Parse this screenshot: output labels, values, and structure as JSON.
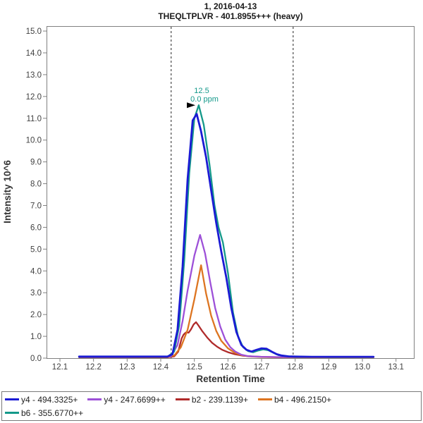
{
  "header": {
    "line1": "1, 2016-04-13",
    "line2": "THEQLTPLVR - 401.8955+++ (heavy)"
  },
  "colors": {
    "frame": "#808080",
    "tick_text": "#404040",
    "axis_title_text": "#333333",
    "boundary_line": "#222222",
    "annotation_text": "#14998a"
  },
  "chart_data": {
    "type": "line",
    "title": "1, 2016-04-13",
    "subtitle": "THEQLTPLVR - 401.8955+++ (heavy)",
    "xlabel": "Retention Time",
    "ylabel": "Intensity 10^6",
    "xlim": [
      12.06,
      13.16
    ],
    "ylim": [
      0,
      15.2
    ],
    "grid": false,
    "legend_position": "bottom",
    "x_ticks": [
      "12.1",
      "12.2",
      "12.3",
      "12.4",
      "12.5",
      "12.6",
      "12.7",
      "12.8",
      "12.9",
      "13.0",
      "13.1"
    ],
    "x_tick_values": [
      12.1,
      12.2,
      12.3,
      12.4,
      12.5,
      12.6,
      12.7,
      12.8,
      12.9,
      13.0,
      13.1
    ],
    "y_ticks": [
      "0.0",
      "1.0",
      "2.0",
      "3.0",
      "4.0",
      "5.0",
      "6.0",
      "7.0",
      "8.0",
      "9.0",
      "10.0",
      "11.0",
      "12.0",
      "13.0",
      "14.0",
      "15.0"
    ],
    "y_tick_values": [
      0,
      1,
      2,
      3,
      4,
      5,
      6,
      7,
      8,
      9,
      10,
      11,
      12,
      13,
      14,
      15
    ],
    "boundaries": [
      12.431,
      12.794
    ],
    "annotation": {
      "label": "12.5",
      "sublabel": "0.0 ppm",
      "x": 12.507,
      "y": 11.6
    },
    "series": [
      {
        "name": "b2 - 239.1139+",
        "color": "#b02b2b",
        "width": 2.3,
        "points": [
          [
            12.157,
            0.04
          ],
          [
            12.3,
            0.04
          ],
          [
            12.42,
            0.04
          ],
          [
            12.44,
            0.08
          ],
          [
            12.452,
            0.3
          ],
          [
            12.462,
            0.9
          ],
          [
            12.468,
            1.08
          ],
          [
            12.475,
            1.18
          ],
          [
            12.483,
            1.17
          ],
          [
            12.49,
            1.32
          ],
          [
            12.498,
            1.55
          ],
          [
            12.505,
            1.65
          ],
          [
            12.513,
            1.48
          ],
          [
            12.523,
            1.25
          ],
          [
            12.538,
            0.95
          ],
          [
            12.553,
            0.7
          ],
          [
            12.568,
            0.52
          ],
          [
            12.583,
            0.38
          ],
          [
            12.6,
            0.27
          ],
          [
            12.62,
            0.18
          ],
          [
            12.645,
            0.11
          ],
          [
            12.67,
            0.08
          ],
          [
            12.7,
            0.06
          ],
          [
            12.75,
            0.04
          ],
          [
            12.8,
            0.04
          ],
          [
            12.9,
            0.04
          ],
          [
            13.0,
            0.04
          ],
          [
            13.033,
            0.04
          ]
        ]
      },
      {
        "name": "b4 - 496.2150+",
        "color": "#dd7521",
        "width": 2.3,
        "points": [
          [
            12.157,
            0.05
          ],
          [
            12.3,
            0.05
          ],
          [
            12.42,
            0.05
          ],
          [
            12.44,
            0.12
          ],
          [
            12.46,
            0.5
          ],
          [
            12.48,
            1.3
          ],
          [
            12.5,
            2.7
          ],
          [
            12.52,
            4.26
          ],
          [
            12.535,
            2.95
          ],
          [
            12.55,
            1.95
          ],
          [
            12.565,
            1.25
          ],
          [
            12.58,
            0.8
          ],
          [
            12.6,
            0.45
          ],
          [
            12.62,
            0.25
          ],
          [
            12.64,
            0.14
          ],
          [
            12.66,
            0.08
          ],
          [
            12.7,
            0.05
          ],
          [
            12.8,
            0.04
          ],
          [
            12.9,
            0.04
          ],
          [
            13.0,
            0.04
          ],
          [
            13.033,
            0.04
          ]
        ]
      },
      {
        "name": "y4 - 247.6699++",
        "color": "#9d50d8",
        "width": 2.3,
        "points": [
          [
            12.157,
            0.05
          ],
          [
            12.3,
            0.05
          ],
          [
            12.43,
            0.08
          ],
          [
            12.45,
            0.6
          ],
          [
            12.465,
            1.7
          ],
          [
            12.48,
            3.1
          ],
          [
            12.5,
            4.7
          ],
          [
            12.517,
            5.65
          ],
          [
            12.532,
            4.8
          ],
          [
            12.547,
            3.5
          ],
          [
            12.562,
            2.3
          ],
          [
            12.577,
            1.45
          ],
          [
            12.592,
            0.85
          ],
          [
            12.607,
            0.5
          ],
          [
            12.622,
            0.3
          ],
          [
            12.64,
            0.16
          ],
          [
            12.66,
            0.09
          ],
          [
            12.7,
            0.06
          ],
          [
            12.75,
            0.05
          ],
          [
            12.8,
            0.05
          ],
          [
            12.9,
            0.05
          ],
          [
            13.0,
            0.05
          ],
          [
            13.033,
            0.05
          ]
        ]
      },
      {
        "name": "b6 - 355.6770++",
        "color": "#14998a",
        "width": 2.3,
        "points": [
          [
            12.157,
            0.06
          ],
          [
            12.3,
            0.06
          ],
          [
            12.42,
            0.06
          ],
          [
            12.44,
            0.3
          ],
          [
            12.455,
            1.5
          ],
          [
            12.47,
            4.5
          ],
          [
            12.485,
            8.5
          ],
          [
            12.5,
            11.0
          ],
          [
            12.513,
            11.6
          ],
          [
            12.528,
            10.7
          ],
          [
            12.545,
            8.9
          ],
          [
            12.56,
            7.0
          ],
          [
            12.572,
            6.0
          ],
          [
            12.585,
            5.3
          ],
          [
            12.6,
            3.9
          ],
          [
            12.615,
            2.1
          ],
          [
            12.63,
            1.0
          ],
          [
            12.645,
            0.5
          ],
          [
            12.66,
            0.32
          ],
          [
            12.675,
            0.27
          ],
          [
            12.69,
            0.35
          ],
          [
            12.705,
            0.4
          ],
          [
            12.72,
            0.36
          ],
          [
            12.735,
            0.25
          ],
          [
            12.75,
            0.14
          ],
          [
            12.77,
            0.09
          ],
          [
            12.8,
            0.06
          ],
          [
            12.9,
            0.05
          ],
          [
            13.0,
            0.05
          ],
          [
            13.033,
            0.05
          ]
        ]
      },
      {
        "name": "y4 - 494.3325+",
        "color": "#1b1bd4",
        "width": 2.8,
        "points": [
          [
            12.157,
            0.07
          ],
          [
            12.2,
            0.07
          ],
          [
            12.25,
            0.07
          ],
          [
            12.3,
            0.07
          ],
          [
            12.35,
            0.07
          ],
          [
            12.4,
            0.07
          ],
          [
            12.42,
            0.07
          ],
          [
            12.435,
            0.18
          ],
          [
            12.45,
            1.3
          ],
          [
            12.465,
            4.2
          ],
          [
            12.48,
            8.2
          ],
          [
            12.495,
            10.9
          ],
          [
            12.507,
            11.2
          ],
          [
            12.52,
            10.4
          ],
          [
            12.535,
            9.2
          ],
          [
            12.55,
            7.7
          ],
          [
            12.565,
            6.2
          ],
          [
            12.58,
            4.9
          ],
          [
            12.595,
            3.7
          ],
          [
            12.61,
            2.3
          ],
          [
            12.625,
            1.2
          ],
          [
            12.64,
            0.6
          ],
          [
            12.655,
            0.38
          ],
          [
            12.67,
            0.3
          ],
          [
            12.685,
            0.38
          ],
          [
            12.7,
            0.45
          ],
          [
            12.715,
            0.43
          ],
          [
            12.73,
            0.3
          ],
          [
            12.745,
            0.18
          ],
          [
            12.76,
            0.12
          ],
          [
            12.78,
            0.08
          ],
          [
            12.8,
            0.07
          ],
          [
            12.85,
            0.06
          ],
          [
            12.9,
            0.06
          ],
          [
            12.95,
            0.06
          ],
          [
            13.0,
            0.06
          ],
          [
            13.033,
            0.06
          ]
        ]
      }
    ]
  },
  "legend": {
    "rows": [
      [
        {
          "label": "y4 - 494.3325+",
          "color": "#1b1bd4"
        },
        {
          "label": "y4 - 247.6699++",
          "color": "#9d50d8"
        },
        {
          "label": "b2 - 239.1139+",
          "color": "#b02b2b"
        },
        {
          "label": "b4 - 496.2150+",
          "color": "#dd7521"
        }
      ],
      [
        {
          "label": "b6 - 355.6770++",
          "color": "#14998a"
        }
      ]
    ]
  }
}
